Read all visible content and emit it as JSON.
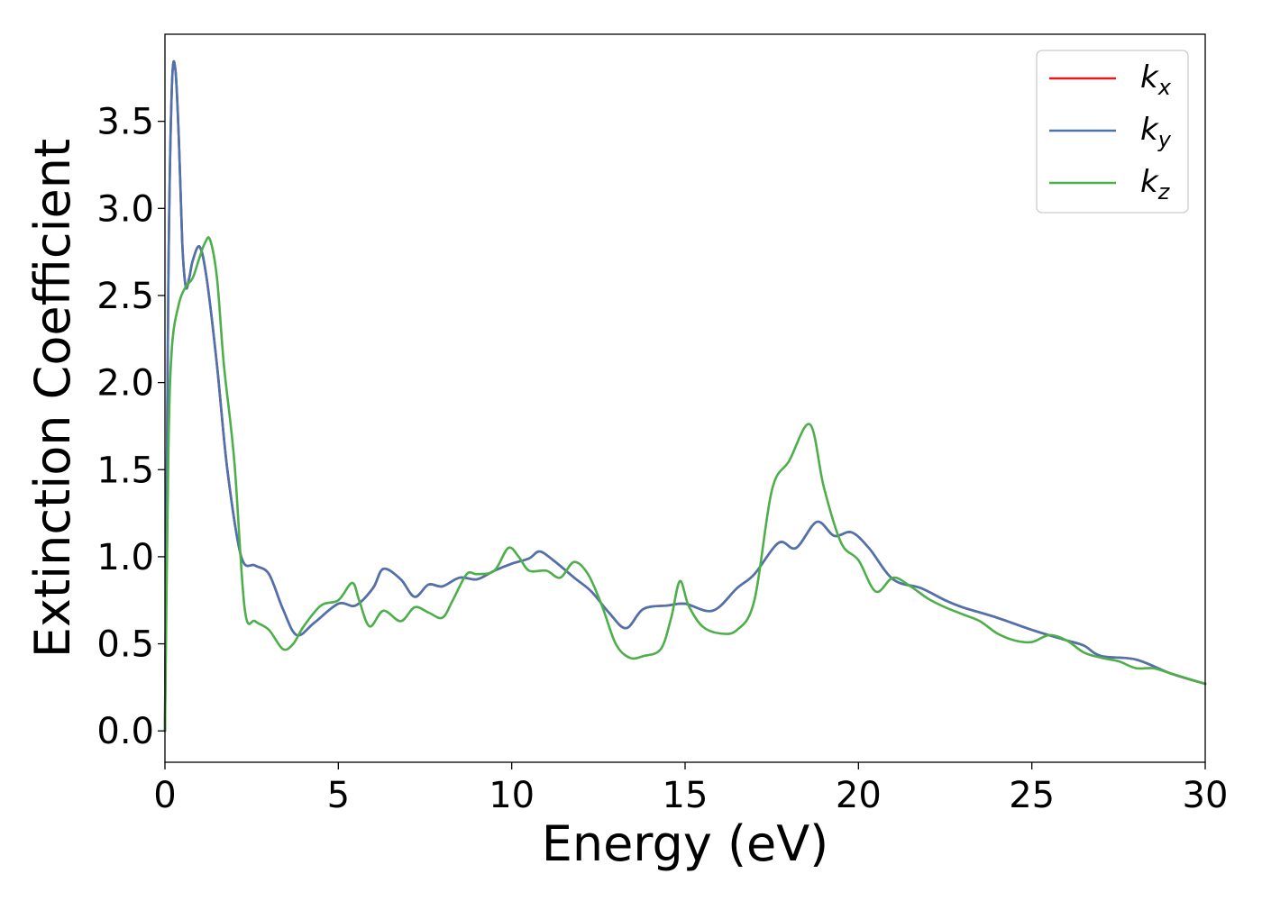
{
  "chart_data": {
    "type": "line",
    "xlabel": "Energy (eV)",
    "ylabel": "Extinction Coefficient",
    "xlim": [
      0,
      30
    ],
    "ylim": [
      -0.18,
      4.0
    ],
    "xticks": [
      0,
      5,
      10,
      15,
      20,
      25,
      30
    ],
    "xtick_labels": [
      "0",
      "5",
      "10",
      "15",
      "20",
      "25",
      "30"
    ],
    "yticks": [
      0.0,
      0.5,
      1.0,
      1.5,
      2.0,
      2.5,
      3.0,
      3.5
    ],
    "ytick_labels": [
      "0.0",
      "0.5",
      "1.0",
      "1.5",
      "2.0",
      "2.5",
      "3.0",
      "3.5"
    ],
    "grid": false,
    "legend_position": "top-right",
    "series": [
      {
        "name": "k",
        "sub": "x",
        "color": "#e41a1c",
        "x": [
          0,
          0.1,
          0.2,
          0.3,
          0.4,
          0.5,
          0.6,
          0.7,
          0.8,
          1.0,
          1.2,
          1.5,
          1.8,
          2.2,
          2.6,
          3.0,
          3.4,
          3.8,
          4.3,
          5.0,
          5.5,
          6.0,
          6.3,
          6.8,
          7.2,
          7.6,
          8.0,
          8.5,
          9.0,
          9.5,
          10.0,
          10.5,
          10.8,
          11.2,
          11.8,
          12.3,
          12.8,
          13.3,
          13.8,
          14.5,
          15.0,
          15.8,
          16.5,
          17.0,
          17.7,
          18.2,
          18.8,
          19.3,
          19.8,
          20.3,
          21.0,
          21.8,
          22.5,
          23.0,
          24.0,
          25.0,
          26.0,
          26.5,
          27.0,
          28.0,
          29.0,
          30.0
        ],
        "y": [
          0.0,
          2.6,
          3.7,
          3.8,
          3.4,
          2.8,
          2.55,
          2.6,
          2.7,
          2.78,
          2.6,
          2.1,
          1.5,
          1.0,
          0.95,
          0.9,
          0.7,
          0.55,
          0.62,
          0.73,
          0.72,
          0.82,
          0.93,
          0.87,
          0.77,
          0.84,
          0.83,
          0.88,
          0.87,
          0.92,
          0.96,
          0.99,
          1.03,
          0.98,
          0.88,
          0.8,
          0.68,
          0.59,
          0.7,
          0.72,
          0.73,
          0.69,
          0.82,
          0.9,
          1.08,
          1.05,
          1.2,
          1.12,
          1.14,
          1.05,
          0.87,
          0.82,
          0.75,
          0.71,
          0.65,
          0.58,
          0.52,
          0.49,
          0.43,
          0.41,
          0.33,
          0.27
        ]
      },
      {
        "name": "k",
        "sub": "y",
        "color": "#4a73b0",
        "x": [
          0,
          0.1,
          0.2,
          0.3,
          0.4,
          0.5,
          0.6,
          0.7,
          0.8,
          1.0,
          1.2,
          1.5,
          1.8,
          2.2,
          2.6,
          3.0,
          3.4,
          3.8,
          4.3,
          5.0,
          5.5,
          6.0,
          6.3,
          6.8,
          7.2,
          7.6,
          8.0,
          8.5,
          9.0,
          9.5,
          10.0,
          10.5,
          10.8,
          11.2,
          11.8,
          12.3,
          12.8,
          13.3,
          13.8,
          14.5,
          15.0,
          15.8,
          16.5,
          17.0,
          17.7,
          18.2,
          18.8,
          19.3,
          19.8,
          20.3,
          21.0,
          21.8,
          22.5,
          23.0,
          24.0,
          25.0,
          26.0,
          26.5,
          27.0,
          28.0,
          29.0,
          30.0
        ],
        "y": [
          0.0,
          2.6,
          3.7,
          3.8,
          3.4,
          2.8,
          2.55,
          2.6,
          2.7,
          2.78,
          2.6,
          2.1,
          1.5,
          1.0,
          0.95,
          0.9,
          0.7,
          0.55,
          0.62,
          0.73,
          0.72,
          0.82,
          0.93,
          0.87,
          0.77,
          0.84,
          0.83,
          0.88,
          0.87,
          0.92,
          0.96,
          0.99,
          1.03,
          0.98,
          0.88,
          0.8,
          0.68,
          0.59,
          0.7,
          0.72,
          0.73,
          0.69,
          0.82,
          0.9,
          1.08,
          1.05,
          1.2,
          1.12,
          1.14,
          1.05,
          0.87,
          0.82,
          0.75,
          0.71,
          0.65,
          0.58,
          0.52,
          0.49,
          0.43,
          0.41,
          0.33,
          0.27
        ]
      },
      {
        "name": "k",
        "sub": "z",
        "color": "#4daf4a",
        "x": [
          0,
          0.1,
          0.2,
          0.4,
          0.6,
          0.8,
          1.0,
          1.15,
          1.3,
          1.5,
          1.7,
          2.0,
          2.3,
          2.6,
          3.0,
          3.4,
          3.7,
          4.0,
          4.5,
          5.0,
          5.4,
          5.6,
          5.9,
          6.3,
          6.8,
          7.2,
          7.6,
          8.0,
          8.3,
          8.7,
          9.0,
          9.5,
          9.9,
          10.2,
          10.5,
          11.0,
          11.4,
          11.8,
          12.2,
          12.6,
          13.0,
          13.4,
          13.8,
          14.3,
          14.6,
          14.85,
          15.1,
          15.5,
          16.0,
          16.5,
          17.0,
          17.5,
          18.0,
          18.6,
          19.0,
          19.5,
          20.0,
          20.5,
          21.0,
          21.5,
          22.0,
          22.5,
          23.0,
          23.5,
          24.0,
          24.5,
          25.0,
          25.5,
          26.0,
          26.5,
          27.0,
          27.5,
          28.0,
          28.5,
          29.0,
          29.5,
          30.0
        ],
        "y": [
          0.0,
          1.6,
          2.2,
          2.45,
          2.55,
          2.6,
          2.72,
          2.8,
          2.82,
          2.6,
          2.1,
          1.55,
          0.7,
          0.63,
          0.58,
          0.47,
          0.5,
          0.6,
          0.72,
          0.75,
          0.85,
          0.75,
          0.6,
          0.69,
          0.63,
          0.71,
          0.68,
          0.65,
          0.75,
          0.9,
          0.9,
          0.92,
          1.05,
          1.0,
          0.92,
          0.92,
          0.88,
          0.97,
          0.9,
          0.72,
          0.5,
          0.42,
          0.43,
          0.47,
          0.65,
          0.86,
          0.72,
          0.6,
          0.56,
          0.58,
          0.75,
          1.38,
          1.55,
          1.76,
          1.4,
          1.08,
          0.98,
          0.8,
          0.88,
          0.83,
          0.76,
          0.71,
          0.67,
          0.63,
          0.56,
          0.52,
          0.51,
          0.55,
          0.52,
          0.45,
          0.42,
          0.4,
          0.36,
          0.36,
          0.33,
          0.3,
          0.27
        ]
      }
    ]
  }
}
